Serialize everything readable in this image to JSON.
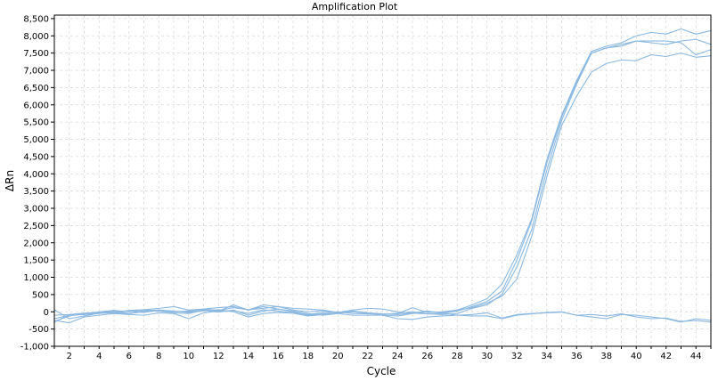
{
  "chart_data": {
    "type": "line",
    "title": "Amplification Plot",
    "xlabel": "Cycle",
    "ylabel": "ΔRn",
    "xlim": [
      1,
      45
    ],
    "ylim": [
      -1000,
      8600
    ],
    "x_ticks": [
      2,
      4,
      6,
      8,
      10,
      12,
      14,
      16,
      18,
      20,
      22,
      24,
      26,
      28,
      30,
      32,
      34,
      36,
      38,
      40,
      42,
      44
    ],
    "y_ticks": [
      -1000,
      -500,
      0,
      500,
      1000,
      1500,
      2000,
      2500,
      3000,
      3500,
      4000,
      4500,
      5000,
      5500,
      6000,
      6500,
      7000,
      7500,
      8000,
      8500
    ],
    "y_tick_labels": [
      "-1,000",
      "-500",
      "0",
      "500",
      "1,000",
      "1,500",
      "2,000",
      "2,500",
      "3,000",
      "3,500",
      "4,000",
      "4,500",
      "5,000",
      "5,500",
      "6,000",
      "6,500",
      "7,000",
      "7,500",
      "8,000",
      "8,500"
    ],
    "grid": true,
    "line_color": "#8ab8e0",
    "x": [
      1,
      2,
      3,
      4,
      5,
      6,
      7,
      8,
      9,
      10,
      11,
      12,
      13,
      14,
      15,
      16,
      17,
      18,
      19,
      20,
      21,
      22,
      23,
      24,
      25,
      26,
      27,
      28,
      29,
      30,
      31,
      32,
      33,
      34,
      35,
      36,
      37,
      38,
      39,
      40,
      41,
      42,
      43,
      44,
      45
    ],
    "series": [
      {
        "values": [
          -300,
          -80,
          -60,
          -20,
          20,
          -50,
          30,
          50,
          20,
          0,
          80,
          40,
          120,
          60,
          100,
          150,
          50,
          0,
          30,
          -20,
          0,
          -40,
          -80,
          -60,
          120,
          -20,
          0,
          50,
          200,
          380,
          800,
          1650,
          2700,
          4400,
          5700,
          6700,
          7550,
          7700,
          7800,
          8000,
          8100,
          8050,
          8200,
          8050,
          8150
        ]
      },
      {
        "values": [
          -200,
          -100,
          -80,
          -50,
          0,
          30,
          -20,
          50,
          0,
          20,
          60,
          20,
          30,
          -50,
          60,
          20,
          -30,
          -80,
          -20,
          0,
          -50,
          -60,
          -80,
          -40,
          0,
          -60,
          -50,
          20,
          150,
          300,
          600,
          1500,
          2650,
          4300,
          5650,
          6650,
          7500,
          7650,
          7750,
          7850,
          7800,
          7750,
          7850,
          7900,
          7750
        ]
      },
      {
        "values": [
          -280,
          -120,
          -60,
          0,
          40,
          0,
          60,
          20,
          -30,
          -50,
          40,
          -10,
          50,
          -100,
          20,
          80,
          0,
          -100,
          -60,
          -30,
          20,
          -30,
          -100,
          -120,
          -50,
          0,
          -20,
          50,
          120,
          250,
          450,
          950,
          2200,
          3900,
          5400,
          6250,
          6950,
          7200,
          7300,
          7280,
          7450,
          7400,
          7500,
          7380,
          7420
        ]
      },
      {
        "values": [
          -100,
          -80,
          -40,
          -20,
          -30,
          -50,
          0,
          30,
          20,
          -20,
          30,
          60,
          0,
          -150,
          -50,
          -20,
          -40,
          -120,
          -80,
          -40,
          0,
          -30,
          -60,
          -80,
          -40,
          -60,
          -80,
          -50,
          100,
          200,
          500,
          1300,
          2400,
          4100,
          5550,
          6600,
          7500,
          7650,
          7700,
          7850,
          7850,
          7850,
          7800,
          7450,
          7600
        ]
      },
      {
        "values": [
          60,
          -200,
          -120,
          -40,
          -30,
          40,
          60,
          100,
          150,
          50,
          80,
          120,
          150,
          50,
          200,
          150,
          100,
          80,
          50,
          -20,
          50,
          100,
          80,
          0,
          -40,
          20,
          -40,
          -100,
          -120,
          -120,
          -200,
          -100,
          -60,
          -20,
          0,
          -100,
          -150,
          -200,
          -80,
          -100,
          -150,
          -200,
          -300,
          -200,
          -250
        ]
      },
      {
        "values": [
          -250,
          -320,
          -150,
          -100,
          -50,
          -80,
          -100,
          -30,
          -50,
          -200,
          -30,
          20,
          200,
          50,
          150,
          80,
          20,
          -50,
          -100,
          -50,
          -100,
          -100,
          -100,
          -200,
          -220,
          -150,
          -120,
          -100,
          -80,
          -30,
          -180,
          -80,
          -50,
          -30,
          -10,
          -100,
          -80,
          -120,
          -60,
          -150,
          -200,
          -180,
          -280,
          -250,
          -300
        ]
      }
    ]
  }
}
